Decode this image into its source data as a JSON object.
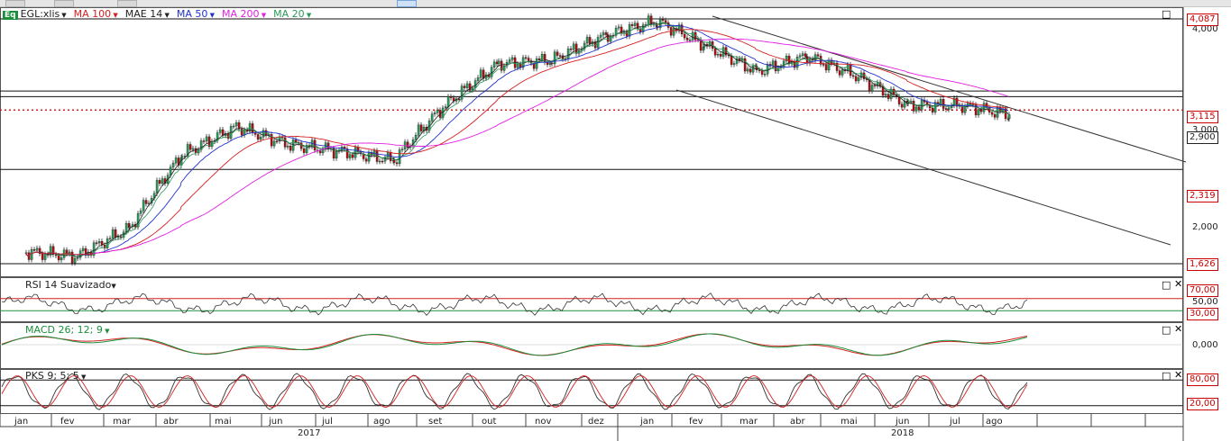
{
  "toolbar": {
    "visible": true
  },
  "legend": {
    "badge": "Eq",
    "symbol": "EGL:xlis",
    "items": [
      {
        "label": "MA 100",
        "color": "#d42020"
      },
      {
        "label": "MAE 14",
        "color": "#222222"
      },
      {
        "label": "MA 50",
        "color": "#2233cc"
      },
      {
        "label": "MA 200",
        "color": "#e020e0"
      },
      {
        "label": "MA 20",
        "color": "#2a9a5a"
      }
    ]
  },
  "panes": {
    "rsi": {
      "title": "RSI 14 Suavizado",
      "levels": [
        "70,00",
        "50,00",
        "30,00"
      ]
    },
    "macd": {
      "title": "MACD 26; 12; 9",
      "levels": [
        "0,000"
      ]
    },
    "pks": {
      "title": "PKS 9; 5; 5",
      "levels": [
        "80,00",
        "20,00"
      ]
    }
  },
  "price_axis": {
    "ticks": [
      "4,000",
      "3,000",
      "2,000"
    ],
    "tags": [
      {
        "label": "4,087",
        "style": "red"
      },
      {
        "label": "3,115",
        "style": "red"
      },
      {
        "label": "2,900",
        "style": "black"
      },
      {
        "label": "2,319",
        "style": "red"
      },
      {
        "label": "1,626",
        "style": "red"
      }
    ]
  },
  "time_axis": {
    "months": [
      "jan",
      "fev",
      "mar",
      "abr",
      "mai",
      "jun",
      "jul",
      "ago",
      "set",
      "out",
      "nov",
      "dez",
      "jan",
      "fev",
      "mar",
      "abr",
      "mai",
      "jun",
      "jul",
      "ago"
    ],
    "years": [
      "2017",
      "2018"
    ]
  },
  "chart_data": {
    "type": "line",
    "title": "EGL:xlis",
    "xlabel": "",
    "ylabel": "",
    "ylim": [
      1.6,
      4.2
    ],
    "horizontal_levels": [
      4.087,
      3.115,
      3.05,
      2.9,
      2.319,
      1.626
    ],
    "series": [
      {
        "name": "EGL:xlis",
        "values": [
          [
            "2017-01",
            1.7
          ],
          [
            "2017-02",
            1.67
          ],
          [
            "2017-03",
            1.86
          ],
          [
            "2017-04",
            2.45
          ],
          [
            "2017-05",
            2.72
          ],
          [
            "2017-06",
            2.55
          ],
          [
            "2017-07",
            2.48
          ],
          [
            "2017-08",
            2.4
          ],
          [
            "2017-09",
            2.93
          ],
          [
            "2017-10",
            3.45
          ],
          [
            "2017-11",
            3.5
          ],
          [
            "2017-12",
            3.85
          ],
          [
            "2018-01",
            4.05
          ],
          [
            "2018-02",
            3.7
          ],
          [
            "2018-03",
            3.35
          ],
          [
            "2018-04",
            3.55
          ],
          [
            "2018-05",
            3.3
          ],
          [
            "2018-06",
            2.95
          ],
          [
            "2018-07",
            2.95
          ],
          [
            "2018-08",
            2.85
          ]
        ]
      },
      {
        "name": "MA 100",
        "values": [
          [
            "2017-01",
            1.65
          ],
          [
            "2017-04",
            1.85
          ],
          [
            "2017-07",
            2.3
          ],
          [
            "2017-10",
            2.8
          ],
          [
            "2018-01",
            3.4
          ],
          [
            "2018-04",
            3.75
          ],
          [
            "2018-08",
            3.2
          ]
        ]
      },
      {
        "name": "MA 200",
        "values": [
          [
            "2017-04",
            1.67
          ],
          [
            "2017-07",
            2.05
          ],
          [
            "2017-10",
            2.4
          ],
          [
            "2018-01",
            2.85
          ],
          [
            "2018-04",
            3.2
          ],
          [
            "2018-08",
            3.35
          ]
        ]
      }
    ],
    "rsi": {
      "ylim": [
        0,
        100
      ],
      "levels": [
        70,
        50,
        30
      ]
    },
    "macd": {
      "levels": [
        0
      ]
    },
    "pks": {
      "ylim": [
        0,
        100
      ],
      "levels": [
        80,
        20
      ]
    }
  }
}
